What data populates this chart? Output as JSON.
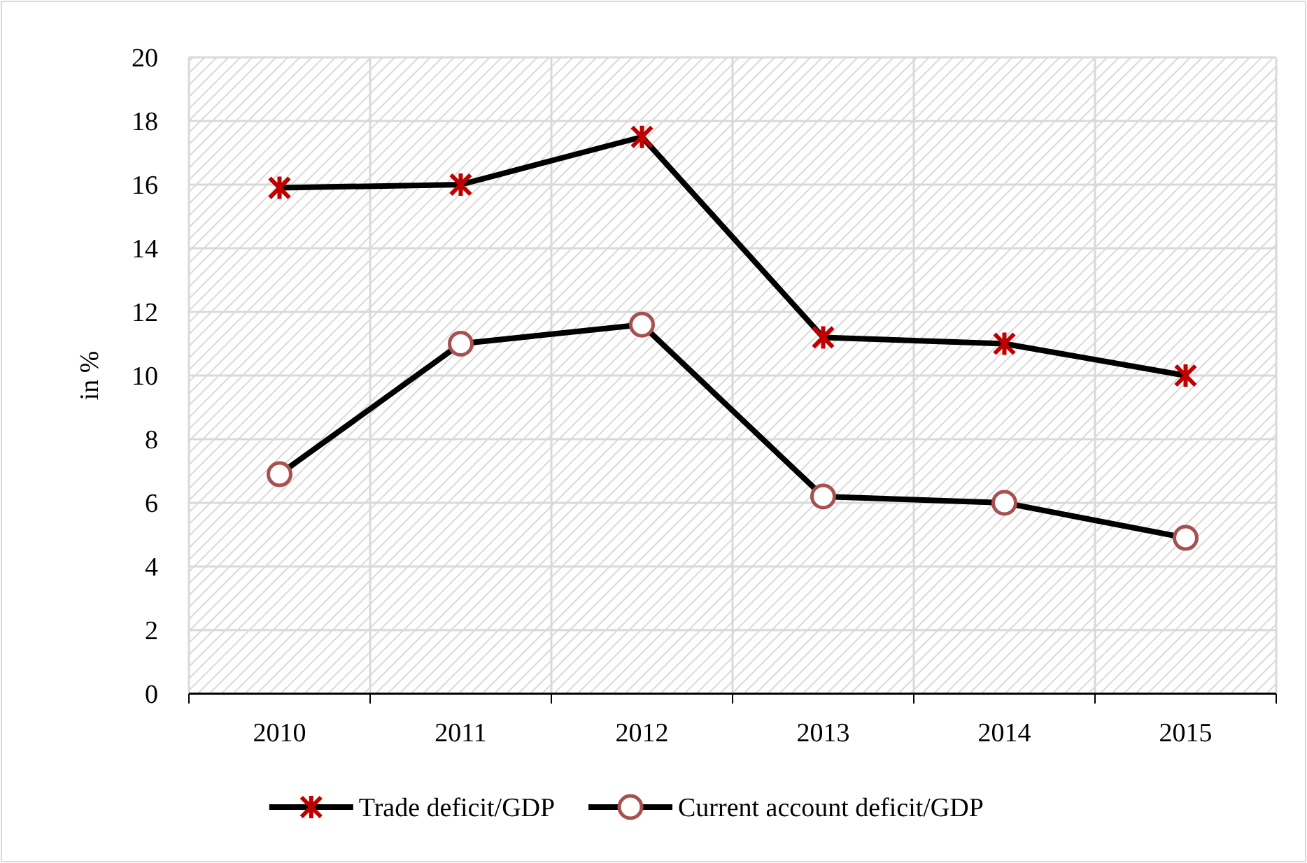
{
  "chart_data": {
    "type": "line",
    "ylabel": "in %",
    "categories": [
      "2010",
      "2011",
      "2012",
      "2013",
      "2014",
      "2015"
    ],
    "series": [
      {
        "name": "Trade deficit/GDP",
        "color": "#000000",
        "marker": "cross",
        "values": [
          15.9,
          16.0,
          17.5,
          11.2,
          11.0,
          10.0
        ]
      },
      {
        "name": "Current account deficit/GDP",
        "color": "#000000",
        "marker": "circle",
        "values": [
          6.9,
          11.0,
          11.6,
          6.2,
          6.0,
          4.9
        ]
      }
    ],
    "ylim": [
      0,
      20
    ],
    "yticks": [
      0,
      2,
      4,
      6,
      8,
      10,
      12,
      14,
      16,
      18,
      20
    ],
    "grid": true,
    "legend": "bottom",
    "line_style": "solid"
  }
}
